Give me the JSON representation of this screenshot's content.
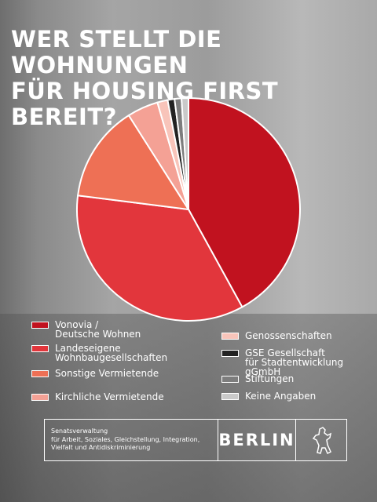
{
  "chart_data": {
    "type": "pie",
    "title": "WER STELLT DIE WOHNUNGEN\nFÜR HOUSING FIRST BEREIT?",
    "categories": [
      "Vonovia /\nDeutsche Wohnen",
      "Landeseigene\nWohnbaugesellschaften",
      "Sonstige Vermietende",
      "Kirchliche Vermietende",
      "Genossenschaften",
      "GSE Gesellschaft\nfür Stadtentwicklung gGmbH",
      "Stiftungen",
      "Keine Angaben"
    ],
    "values": [
      42,
      35,
      14,
      4.5,
      1.5,
      1,
      1,
      1
    ],
    "colors": [
      "#c1121f",
      "#e2363c",
      "#ee7055",
      "#f4a195",
      "#f8c4ba",
      "#222222",
      "#7d7d7d",
      "#c9c9c9"
    ]
  },
  "footer": {
    "text": "Senatsverwaltung\nfür Arbeit, Soziales, Gleichstellung, Integration,\nVielfalt und Antidiskriminierung",
    "logo": "BERLIN"
  }
}
